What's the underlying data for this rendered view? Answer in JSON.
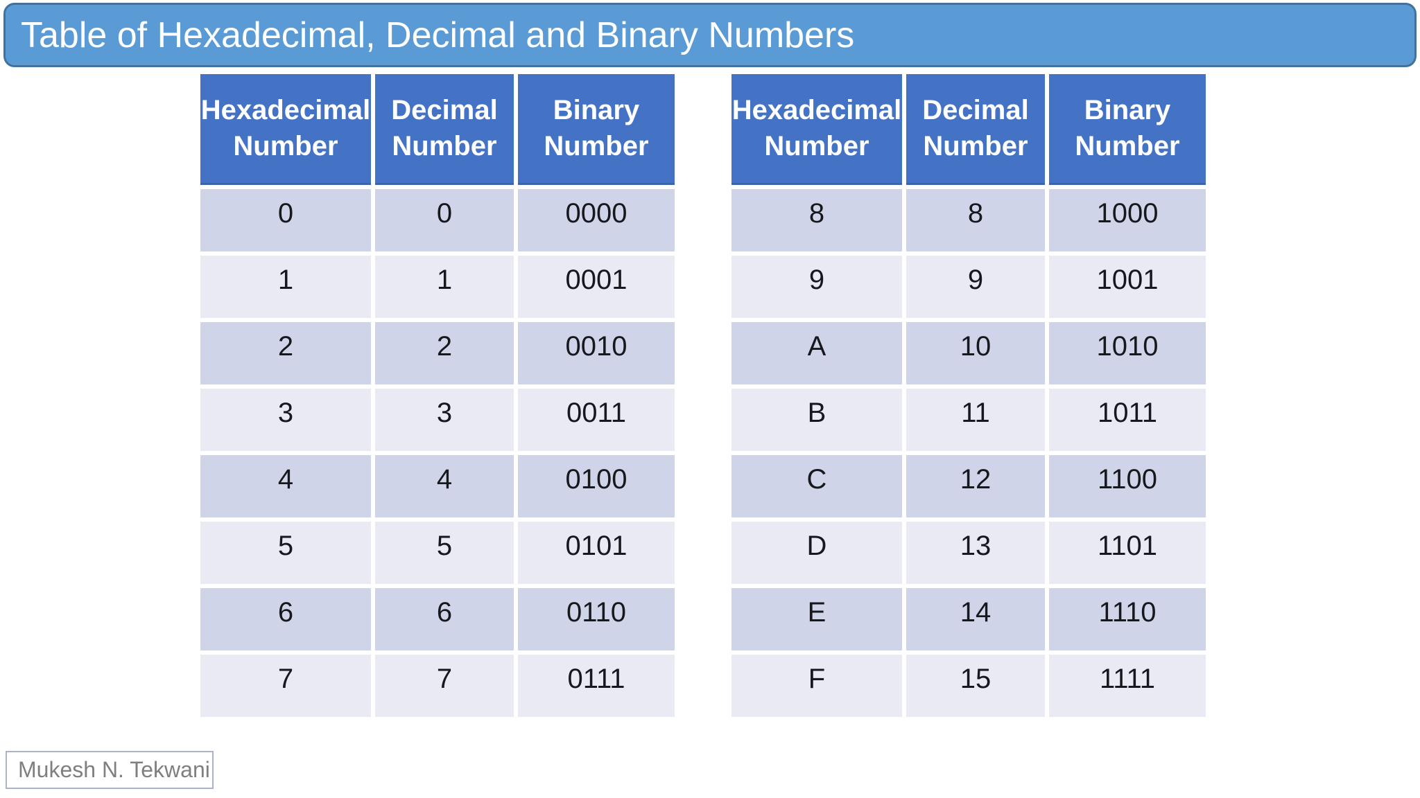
{
  "slide": {
    "title": "Table of Hexadecimal, Decimal and Binary Numbers"
  },
  "footer": {
    "author": "Mukesh N. Tekwani"
  },
  "colors": {
    "title_fill": "#5B9BD5",
    "title_border": "#41719C",
    "header_fill": "#4472C4",
    "row_dark": "#CFD4E8",
    "row_light": "#E9EAF4",
    "cell_text": "#16181d",
    "footer_text": "#7f7f7f"
  },
  "tables": [
    {
      "headers": [
        {
          "line1": "Hexadecimal",
          "line2": "Number"
        },
        {
          "line1": "Decimal",
          "line2": "Number"
        },
        {
          "line1": "Binary",
          "line2": "Number"
        }
      ],
      "rows": [
        [
          "0",
          "0",
          "0000"
        ],
        [
          "1",
          "1",
          "0001"
        ],
        [
          "2",
          "2",
          "0010"
        ],
        [
          "3",
          "3",
          "0011"
        ],
        [
          "4",
          "4",
          "0100"
        ],
        [
          "5",
          "5",
          "0101"
        ],
        [
          "6",
          "6",
          "0110"
        ],
        [
          "7",
          "7",
          "0111"
        ]
      ]
    },
    {
      "headers": [
        {
          "line1": "Hexadecimal",
          "line2": "Number"
        },
        {
          "line1": "Decimal",
          "line2": "Number"
        },
        {
          "line1": "Binary",
          "line2": "Number"
        }
      ],
      "rows": [
        [
          "8",
          "8",
          "1000"
        ],
        [
          "9",
          "9",
          "1001"
        ],
        [
          "A",
          "10",
          "1010"
        ],
        [
          "B",
          "11",
          "1011"
        ],
        [
          "C",
          "12",
          "1100"
        ],
        [
          "D",
          "13",
          "1101"
        ],
        [
          "E",
          "14",
          "1110"
        ],
        [
          "F",
          "15",
          "1111"
        ]
      ]
    }
  ]
}
